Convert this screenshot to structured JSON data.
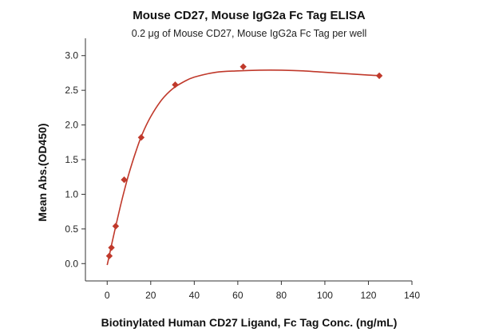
{
  "chart_data": {
    "type": "scatter",
    "title": "Mouse CD27, Mouse IgG2a Fc Tag ELISA",
    "subtitle": "0.2 μg of Mouse CD27, Mouse IgG2a Fc Tag per well",
    "xlabel": "Biotinylated Human CD27 Ligand, Fc Tag Conc. (ng/mL)",
    "ylabel": "Mean Abs.(OD450)",
    "xlim": [
      -10,
      140
    ],
    "ylim": [
      -0.25,
      3.25
    ],
    "xticks": [
      0,
      20,
      40,
      60,
      80,
      100,
      120,
      140
    ],
    "yticks": [
      0.0,
      0.5,
      1.0,
      1.5,
      2.0,
      2.5,
      3.0
    ],
    "xtick_labels": [
      "0",
      "20",
      "40",
      "60",
      "80",
      "100",
      "120",
      "140"
    ],
    "ytick_labels": [
      "0.0",
      "0.5",
      "1.0",
      "1.5",
      "2.0",
      "2.5",
      "3.0"
    ],
    "grid": false,
    "color": "#c0392b",
    "marker": "diamond",
    "series": [
      {
        "points": [
          {
            "x": 0.98,
            "y": 0.11
          },
          {
            "x": 1.95,
            "y": 0.23
          },
          {
            "x": 3.91,
            "y": 0.54
          },
          {
            "x": 7.81,
            "y": 1.21
          },
          {
            "x": 15.63,
            "y": 1.82
          },
          {
            "x": 31.25,
            "y": 2.58
          },
          {
            "x": 62.5,
            "y": 2.84
          },
          {
            "x": 125,
            "y": 2.71
          }
        ]
      }
    ],
    "fit_curve": [
      {
        "x": 0,
        "y": -0.02
      },
      {
        "x": 1,
        "y": 0.12
      },
      {
        "x": 2,
        "y": 0.27
      },
      {
        "x": 4,
        "y": 0.55
      },
      {
        "x": 6,
        "y": 0.82
      },
      {
        "x": 8,
        "y": 1.07
      },
      {
        "x": 10,
        "y": 1.3
      },
      {
        "x": 13,
        "y": 1.6
      },
      {
        "x": 16,
        "y": 1.86
      },
      {
        "x": 20,
        "y": 2.12
      },
      {
        "x": 25,
        "y": 2.36
      },
      {
        "x": 30,
        "y": 2.52
      },
      {
        "x": 35,
        "y": 2.62
      },
      {
        "x": 40,
        "y": 2.69
      },
      {
        "x": 50,
        "y": 2.76
      },
      {
        "x": 60,
        "y": 2.78
      },
      {
        "x": 70,
        "y": 2.79
      },
      {
        "x": 80,
        "y": 2.79
      },
      {
        "x": 90,
        "y": 2.78
      },
      {
        "x": 100,
        "y": 2.76
      },
      {
        "x": 110,
        "y": 2.74
      },
      {
        "x": 120,
        "y": 2.72
      },
      {
        "x": 126,
        "y": 2.71
      }
    ]
  }
}
